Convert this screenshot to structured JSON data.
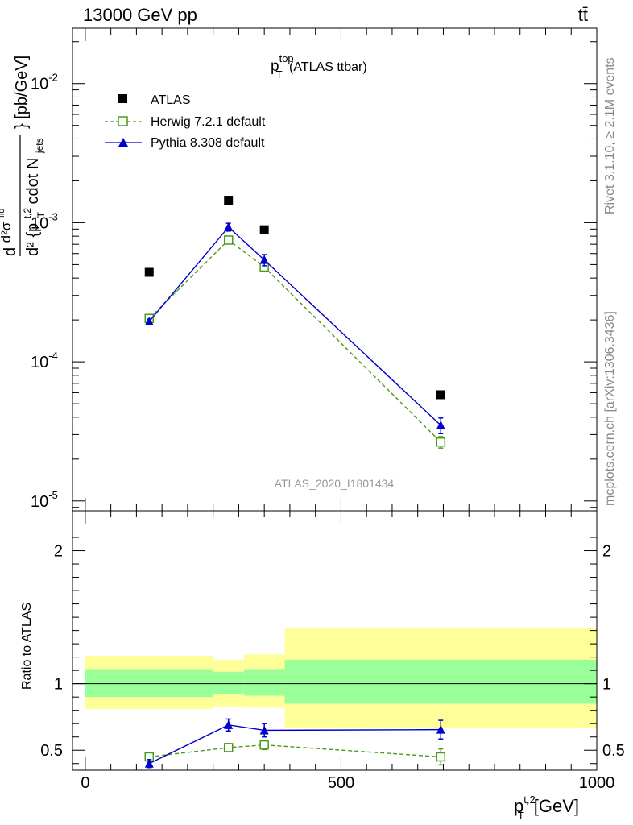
{
  "header": {
    "left": "13000 GeV pp",
    "right": "tt̄"
  },
  "side_labels": {
    "rivet": "Rivet 3.1.10, ≥ 2.1M events",
    "mcplots": "mcplots.cern.ch [arXiv:1306.3436]"
  },
  "chart_data": [
    {
      "type": "scatter",
      "panel": "main",
      "title": "p_T^top (ATLAS ttbar)",
      "title_main": "p",
      "title_sup": "top",
      "title_sub": "T",
      "title_rest": " (ATLAS ttbar)",
      "ylabel": "d²σ^fid / d² {p_T^t,2 cdot N_jets} [pb/GeV]",
      "ylabel_pieces": {
        "d": "d",
        "sigma": "d²σ",
        "fid": "fid",
        "d2": "d²",
        "brace_p": "{p",
        "t2": "t,2",
        "T": "T",
        "cdot": "cdot N",
        "jets": "jets",
        "unit": "} [pb/GeV]"
      },
      "yscale": "log",
      "ylim": [
        8.5e-06,
        0.025
      ],
      "xlim": [
        -25,
        1000
      ],
      "yticks": [
        {
          "value": 0.01,
          "base": "10",
          "exp": "-2"
        },
        {
          "value": 0.001,
          "base": "10",
          "exp": "-3"
        },
        {
          "value": 0.0001,
          "base": "10",
          "exp": "-4"
        },
        {
          "value": 1e-05,
          "base": "10",
          "exp": "-5"
        }
      ],
      "watermark": "ATLAS_2020_I1801434",
      "legend": {
        "position": "top-left",
        "entries": [
          "ATLAS",
          "Herwig 7.2.1 default",
          "Pythia 8.308 default"
        ]
      },
      "series": [
        {
          "name": "ATLAS",
          "color": "#000000",
          "marker": "filled-square",
          "x": [
            125,
            280,
            350,
            695
          ],
          "y": [
            0.00044,
            0.00145,
            0.00089,
            5.8e-05
          ]
        },
        {
          "name": "Herwig 7.2.1 default",
          "color": "#4a9a1a",
          "marker": "open-square",
          "line": "dashed",
          "x": [
            125,
            280,
            350,
            695
          ],
          "y": [
            0.000205,
            0.00075,
            0.00048,
            2.65e-05
          ],
          "yerr": [
            8e-06,
            3e-05,
            2e-05,
            2.5e-06
          ]
        },
        {
          "name": "Pythia 8.308 default",
          "color": "#0000cc",
          "marker": "filled-triangle",
          "line": "solid",
          "x": [
            125,
            280,
            350,
            695
          ],
          "y": [
            0.000195,
            0.00093,
            0.00054,
            3.5e-05
          ],
          "yerr": [
            8e-06,
            6e-05,
            5e-05,
            4.5e-06
          ]
        }
      ]
    },
    {
      "type": "line",
      "panel": "ratio",
      "ylabel": "Ratio to ATLAS",
      "xlabel": "p_T^t,2 [GeV]",
      "xlabel_pieces": {
        "p": "p",
        "sup": "t,2",
        "sub": "T",
        "unit": " [GeV]"
      },
      "ylim": [
        0.35,
        2.3
      ],
      "xlim": [
        -25,
        1000
      ],
      "yticks": [
        "0.5",
        "1",
        "2"
      ],
      "xticks": [
        "0",
        "500",
        "1000"
      ],
      "bands": {
        "x_edges": [
          0,
          250,
          310,
          390,
          1000
        ],
        "inner": [
          [
            0.9,
            1.11
          ],
          [
            0.92,
            1.09
          ],
          [
            0.91,
            1.11
          ],
          [
            0.85,
            1.18
          ]
        ],
        "outer": [
          [
            0.81,
            1.21
          ],
          [
            0.83,
            1.18
          ],
          [
            0.82,
            1.22
          ],
          [
            0.67,
            1.42
          ]
        ],
        "inner_color": "#99ff99",
        "outer_color": "#ffff99"
      },
      "series": [
        {
          "name": "Herwig 7.2.1 default",
          "color": "#4a9a1a",
          "marker": "open-square",
          "line": "dashed",
          "x": [
            125,
            280,
            350,
            695
          ],
          "y": [
            0.45,
            0.52,
            0.54,
            0.45
          ],
          "yerr": [
            0.03,
            0.03,
            0.035,
            0.06
          ]
        },
        {
          "name": "Pythia 8.308 default",
          "color": "#0000cc",
          "marker": "filled-triangle",
          "line": "solid",
          "x": [
            125,
            280,
            350,
            695
          ],
          "y": [
            0.4,
            0.69,
            0.65,
            0.655
          ],
          "yerr": [
            0.03,
            0.045,
            0.05,
            0.07
          ]
        }
      ]
    }
  ]
}
